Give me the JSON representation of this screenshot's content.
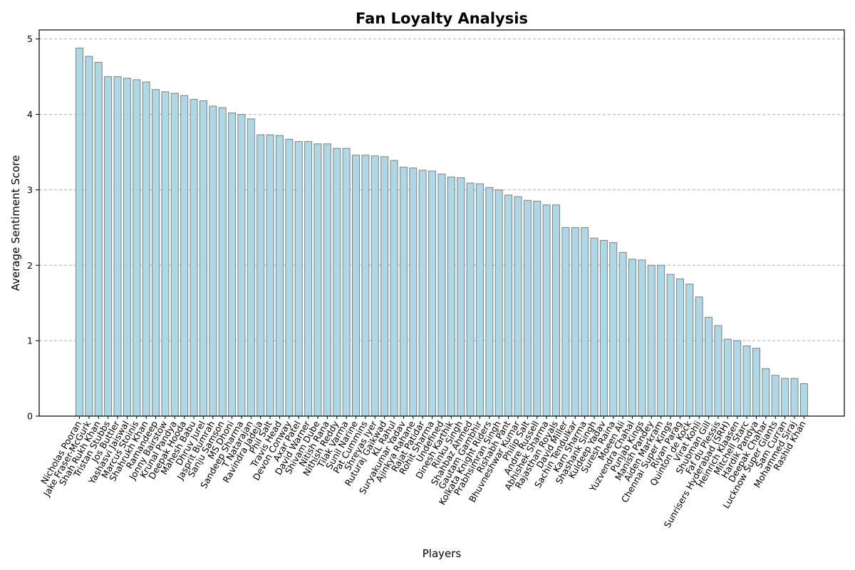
{
  "chart_data": {
    "type": "bar",
    "title": "Fan Loyalty Analysis",
    "xlabel": "Players",
    "ylabel": "Average Sentiment Score",
    "ylim": [
      0,
      5.12
    ],
    "yticks": [
      0,
      1,
      2,
      3,
      4,
      5
    ],
    "grid": "y-dashed",
    "bar_color": "#add8e6",
    "bar_edge_color": "#808080",
    "categories": [
      "Nicholas Pooran",
      "Jake Fraser-McGurk",
      "Shah Rukh Khan",
      "Tristan Stubbs",
      "Jos Buttler",
      "Yashasvi Jaiswal",
      "Marcus Stoinis",
      "Shahrukh Khan",
      "Ramandeep",
      "Jonny Bairstow",
      "Krunal Pandya",
      "Deepak Hooda",
      "Mahesh Babu",
      "Dhruv Jurel",
      "Jasprit Bumrah",
      "Sanju Samson",
      "MS Dhoni",
      "Sandeep Sharma",
      "T Natarajan",
      "Ravindra Jadeja",
      "Phil Salt",
      "Travis Head",
      "Devon Conway",
      "Axar Patel",
      "David Warner",
      "Shivam Dube",
      "Nitish Rana",
      "Nithish Reddy",
      "Tilak Varma",
      "Sunil Narine",
      "Pat Cummins",
      "Shreyas Iyer",
      "Ruturaj Gaikwad",
      "KL Rahul",
      "Suryakumar Yadav",
      "Ajinkya Rahane",
      "Rajat Patidar",
      "Rohit Sharma",
      "Undefined",
      "Dinesh Karthik",
      "Rinku Singh",
      "Shahbaz Ahmed",
      "Gautam Gambhir",
      "Kolkata Knight Riders",
      "Prabhsimran Singh",
      "Rishabh Pant",
      "Bhuvneshwar Kumar",
      "Philip Salt",
      "Andre Russell",
      "Abhishek Sharma",
      "Rajasthan Royals",
      "David Miller",
      "Sachin Tendulkar",
      "Karn Sharma",
      "Shashank Singh",
      "Kuldeep Yadav",
      "Suresh Raina",
      "Moeen Ali",
      "Yuzvendra Chahal",
      "Punjab Kings",
      "Manish Pandey",
      "Aiden Markram",
      "Chennai Super Kings",
      "Riyan Parag",
      "Quinton de Kock",
      "Virat Kohli",
      "Shubman Gill",
      "Faf du Plessis",
      "Sunrisers Hyderabad (SRH)",
      "Heinrich Klaasen",
      "Mitchell Starc",
      "Hardik Pandya",
      "Deepak Chahar",
      "Lucknow Super Giants",
      "Sam Curran",
      "Mohammed Siraj",
      "Rashid Khan"
    ],
    "values": [
      4.88,
      4.77,
      4.69,
      4.5,
      4.5,
      4.48,
      4.46,
      4.43,
      4.33,
      4.3,
      4.28,
      4.25,
      4.2,
      4.18,
      4.11,
      4.09,
      4.02,
      4.0,
      3.94,
      3.73,
      3.73,
      3.72,
      3.67,
      3.64,
      3.64,
      3.61,
      3.61,
      3.55,
      3.55,
      3.46,
      3.46,
      3.45,
      3.44,
      3.39,
      3.3,
      3.29,
      3.26,
      3.25,
      3.21,
      3.17,
      3.16,
      3.09,
      3.08,
      3.03,
      3.0,
      2.93,
      2.91,
      2.86,
      2.85,
      2.8,
      2.8,
      2.5,
      2.5,
      2.5,
      2.36,
      2.33,
      2.3,
      2.17,
      2.08,
      2.07,
      2.0,
      2.0,
      1.88,
      1.82,
      1.75,
      1.58,
      1.31,
      1.2,
      1.02,
      1.0,
      0.93,
      0.9,
      0.63,
      0.54,
      0.5,
      0.5,
      0.43
    ]
  }
}
